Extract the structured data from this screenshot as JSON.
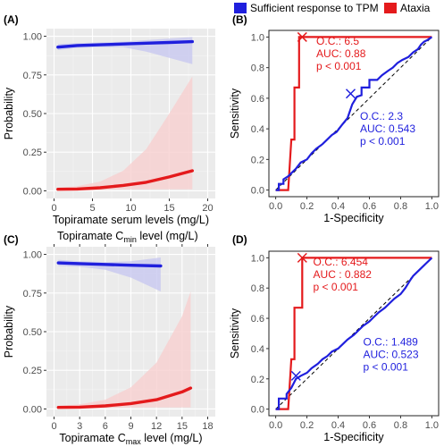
{
  "legend": {
    "items": [
      {
        "label": "Sufficient response to TPM",
        "color": "#1f1fdd"
      },
      {
        "label": "Ataxia",
        "color": "#e41a1c"
      }
    ]
  },
  "panels": {
    "A": {
      "letter": "(A)"
    },
    "B": {
      "letter": "(B)"
    },
    "C": {
      "letter": "(C)",
      "top_title_main": "Topiramate C",
      "top_title_sub": "min",
      "top_title_tail": " level (mg/L)"
    },
    "D": {
      "letter": "(D)"
    }
  },
  "colors": {
    "blue": "#1f1fdd",
    "red": "#e41a1c",
    "blue_band": "#c8c8f0",
    "red_band": "#f8cfcf",
    "panel_bg": "#ebebeb",
    "grid": "#ffffff"
  },
  "chart_data": [
    {
      "id": "A",
      "type": "line",
      "xlabel": "Topiramate serum levels (mg/L)",
      "ylabel": "Probability",
      "xlim": [
        0,
        20
      ],
      "ylim": [
        0,
        1
      ],
      "x_ticks": [
        "0",
        "5",
        "10",
        "15",
        "20"
      ],
      "y_ticks": [
        "0.00",
        "0.25",
        "0.50",
        "0.75",
        "1.00"
      ],
      "grid": true,
      "series": [
        {
          "name": "Sufficient response to TPM",
          "x": [
            0.5,
            3,
            6,
            9,
            12,
            15,
            18
          ],
          "y": [
            0.93,
            0.94,
            0.945,
            0.95,
            0.955,
            0.96,
            0.965
          ],
          "upper": [
            0.95,
            0.955,
            0.96,
            0.965,
            0.975,
            0.985,
            0.995
          ],
          "lower": [
            0.91,
            0.925,
            0.93,
            0.93,
            0.9,
            0.86,
            0.82
          ]
        },
        {
          "name": "Ataxia",
          "x": [
            0.5,
            3,
            6,
            9,
            12,
            15,
            18
          ],
          "y": [
            0.01,
            0.012,
            0.02,
            0.035,
            0.055,
            0.09,
            0.13
          ],
          "upper": [
            0.02,
            0.03,
            0.06,
            0.13,
            0.27,
            0.5,
            0.74
          ],
          "lower": [
            0.0,
            0.0,
            0.005,
            0.01,
            0.01,
            0.01,
            0.01
          ]
        }
      ]
    },
    {
      "id": "B",
      "type": "line",
      "xlabel": "1-Specificity",
      "ylabel": "Sensitivity",
      "xlim": [
        0,
        1
      ],
      "ylim": [
        0,
        1
      ],
      "x_ticks": [
        "0.0",
        "0.2",
        "0.4",
        "0.6",
        "0.8",
        "1.0"
      ],
      "y_ticks": [
        "0.0",
        "0.2",
        "0.4",
        "0.6",
        "0.8",
        "1.0"
      ],
      "series": [
        {
          "name": "Ataxia",
          "x": [
            0,
            0.04,
            0.08,
            0.1,
            0.12,
            0.12,
            0.15,
            0.15,
            0.18,
            1.0
          ],
          "y": [
            0,
            0,
            0,
            0.33,
            0.33,
            0.67,
            0.67,
            1.0,
            1.0,
            1.0
          ]
        },
        {
          "name": "Sufficient response to TPM",
          "x": [
            0,
            0.02,
            0.02,
            0.05,
            0.05,
            0.08,
            0.1,
            0.13,
            0.16,
            0.2,
            0.23,
            0.26,
            0.3,
            0.33,
            0.36,
            0.39,
            0.42,
            0.46,
            0.49,
            0.52,
            0.55,
            0.55,
            0.6,
            0.6,
            0.65,
            0.68,
            0.72,
            0.75,
            0.78,
            0.81,
            0.85,
            0.88,
            0.91,
            0.93,
            0.95,
            0.97,
            1.0
          ],
          "y": [
            0,
            0,
            0.04,
            0.04,
            0.07,
            0.09,
            0.11,
            0.14,
            0.18,
            0.2,
            0.24,
            0.27,
            0.3,
            0.33,
            0.36,
            0.38,
            0.42,
            0.47,
            0.56,
            0.61,
            0.62,
            0.67,
            0.67,
            0.72,
            0.72,
            0.75,
            0.78,
            0.8,
            0.83,
            0.85,
            0.87,
            0.9,
            0.92,
            0.95,
            0.97,
            0.98,
            1.0
          ]
        }
      ],
      "markers": [
        {
          "x": 0.17,
          "y": 1.0,
          "color": "red"
        },
        {
          "x": 0.48,
          "y": 0.63,
          "color": "blue"
        }
      ],
      "annotations": [
        {
          "lines": [
            "O.C.:  6.5",
            "AUC:  0.88",
            "p < 0.001"
          ],
          "color": "red",
          "x": 0.26,
          "y": 0.95
        },
        {
          "lines": [
            "O.C.:  2.3",
            "AUC:  0.543",
            "p < 0.001"
          ],
          "color": "blue",
          "x": 0.54,
          "y": 0.46
        }
      ]
    },
    {
      "id": "C",
      "type": "line",
      "xlabel_main": "Topiramate C",
      "xlabel_sub": "max",
      "xlabel_tail": " level (mg/L)",
      "ylabel": "Probability",
      "xlim": [
        0,
        18
      ],
      "ylim": [
        0,
        1
      ],
      "x_ticks": [
        "0",
        "3",
        "6",
        "9",
        "12",
        "15",
        "18"
      ],
      "y_ticks": [
        "0.00",
        "0.25",
        "0.50",
        "0.75",
        "1.00"
      ],
      "top_axis": true,
      "grid": true,
      "series": [
        {
          "name": "Sufficient response to TPM",
          "x": [
            0.5,
            3,
            6,
            9,
            12.5
          ],
          "y": [
            0.945,
            0.94,
            0.935,
            0.93,
            0.925
          ],
          "upper": [
            0.965,
            0.955,
            0.95,
            0.955,
            0.98
          ],
          "lower": [
            0.925,
            0.92,
            0.9,
            0.85,
            0.76
          ]
        },
        {
          "name": "Ataxia",
          "x": [
            0.5,
            3,
            6,
            9,
            12,
            15,
            16
          ],
          "y": [
            0.01,
            0.012,
            0.02,
            0.035,
            0.06,
            0.11,
            0.135
          ],
          "upper": [
            0.02,
            0.03,
            0.06,
            0.14,
            0.3,
            0.6,
            0.76
          ],
          "lower": [
            0.0,
            0.0,
            0.005,
            0.01,
            0.01,
            0.01,
            0.01
          ]
        }
      ]
    },
    {
      "id": "D",
      "type": "line",
      "xlabel": "1-Specificity",
      "ylabel": "Sensitivity",
      "xlim": [
        0,
        1
      ],
      "ylim": [
        0,
        1
      ],
      "x_ticks": [
        "0.0",
        "0.2",
        "0.4",
        "0.6",
        "0.8",
        "1.0"
      ],
      "y_ticks": [
        "0.0",
        "0.2",
        "0.4",
        "0.6",
        "0.8",
        "1.0"
      ],
      "series": [
        {
          "name": "Ataxia",
          "x": [
            0,
            0.04,
            0.08,
            0.1,
            0.12,
            0.12,
            0.17,
            0.17,
            1.0
          ],
          "y": [
            0,
            0,
            0,
            0.33,
            0.33,
            0.67,
            0.67,
            1.0,
            1.0
          ]
        },
        {
          "name": "Sufficient response to TPM",
          "x": [
            0,
            0.02,
            0.02,
            0.07,
            0.07,
            0.1,
            0.13,
            0.16,
            0.2,
            0.23,
            0.27,
            0.3,
            0.33,
            0.36,
            0.4,
            0.43,
            0.46,
            0.5,
            0.53,
            0.56,
            0.6,
            0.63,
            0.66,
            0.7,
            0.73,
            0.76,
            0.8,
            0.83,
            0.86,
            0.88,
            0.9,
            0.93,
            0.96,
            1.0
          ],
          "y": [
            0,
            0,
            0.07,
            0.07,
            0.1,
            0.14,
            0.2,
            0.22,
            0.24,
            0.27,
            0.3,
            0.33,
            0.35,
            0.38,
            0.4,
            0.43,
            0.46,
            0.49,
            0.52,
            0.55,
            0.58,
            0.61,
            0.64,
            0.67,
            0.7,
            0.73,
            0.76,
            0.8,
            0.85,
            0.88,
            0.9,
            0.93,
            0.96,
            1.0
          ]
        }
      ],
      "markers": [
        {
          "x": 0.17,
          "y": 1.0,
          "color": "red"
        },
        {
          "x": 0.13,
          "y": 0.22,
          "color": "blue"
        }
      ],
      "annotations": [
        {
          "lines": [
            "O.C.:  6.454",
            "AUC : 0.882",
            "p < 0.001"
          ],
          "color": "red",
          "x": 0.24,
          "y": 0.95
        },
        {
          "lines": [
            "O.C.:  1.489",
            "AUC:  0.523",
            "p < 0.001"
          ],
          "color": "blue",
          "x": 0.56,
          "y": 0.42
        }
      ]
    }
  ]
}
